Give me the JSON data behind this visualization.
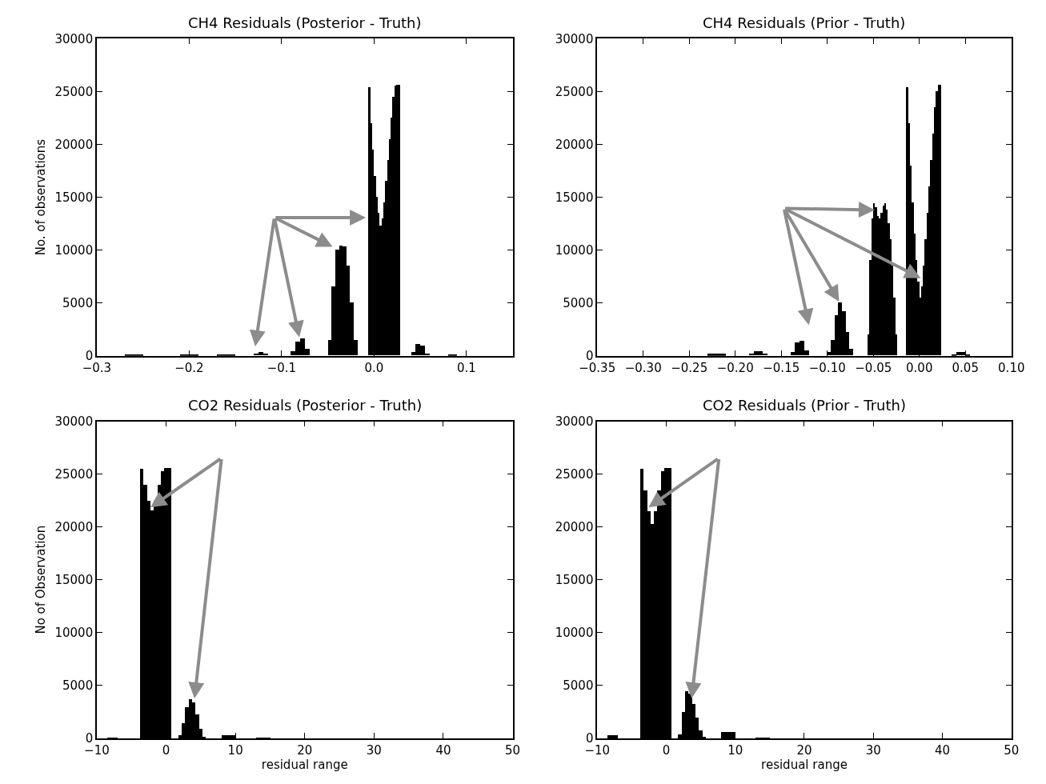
{
  "chart_data": [
    {
      "type": "histogram",
      "title": "CH4 Residuals (Posterior - Truth)",
      "ylabel": "No. of observations",
      "color": "#000000",
      "bins": [
        -0.27,
        -0.25,
        -0.21,
        -0.19,
        -0.17,
        -0.15,
        -0.13,
        -0.125,
        -0.12,
        -0.115,
        -0.09,
        -0.085,
        -0.08,
        -0.075,
        -0.07,
        -0.05,
        -0.046,
        -0.042,
        -0.038,
        -0.034,
        -0.03,
        -0.026,
        -0.022,
        -0.018,
        -0.006,
        -0.004,
        -0.002,
        0,
        0.002,
        0.004,
        0.006,
        0.008,
        0.01,
        0.012,
        0.014,
        0.016,
        0.018,
        0.02,
        0.022,
        0.024,
        0.026,
        0.028,
        0.04,
        0.045,
        0.05,
        0.055,
        0.06,
        0.08,
        0.09
      ],
      "values": [
        100,
        0,
        100,
        0,
        100,
        0,
        200,
        300,
        200,
        0,
        400,
        1300,
        1600,
        600,
        0,
        1500,
        6500,
        10000,
        10400,
        10300,
        8500,
        5000,
        1500,
        0,
        25400,
        22000,
        19500,
        17000,
        15000,
        13500,
        12300,
        13000,
        14500,
        16500,
        18500,
        20500,
        22500,
        24500,
        25500,
        25600,
        25600,
        0,
        300,
        1100,
        900,
        200,
        0,
        100
      ],
      "xlim": [
        -0.3,
        0.15
      ],
      "xticks": [
        {
          "value": -0.3,
          "label": "−0.3"
        },
        {
          "value": -0.2,
          "label": "−0.2"
        },
        {
          "value": -0.1,
          "label": "−0.1"
        },
        {
          "value": 0.0,
          "label": "0.0"
        },
        {
          "value": 0.1,
          "label": "0.1"
        }
      ],
      "ylim": [
        0,
        30000
      ],
      "yticks": [
        0,
        5000,
        10000,
        15000,
        20000,
        25000,
        30000
      ]
    },
    {
      "type": "histogram",
      "title": "CH4 Residuals (Prior - Truth)",
      "color": "#000000",
      "bins": [
        -0.23,
        -0.21,
        -0.185,
        -0.18,
        -0.17,
        -0.165,
        -0.14,
        -0.135,
        -0.13,
        -0.125,
        -0.12,
        -0.1,
        -0.096,
        -0.092,
        -0.088,
        -0.084,
        -0.08,
        -0.076,
        -0.072,
        -0.056,
        -0.054,
        -0.052,
        -0.05,
        -0.048,
        -0.046,
        -0.044,
        -0.042,
        -0.04,
        -0.038,
        -0.036,
        -0.034,
        -0.032,
        -0.03,
        -0.028,
        -0.026,
        -0.024,
        -0.014,
        -0.012,
        -0.01,
        -0.008,
        -0.006,
        -0.004,
        -0.002,
        0,
        0.002,
        0.004,
        0.006,
        0.008,
        0.01,
        0.012,
        0.014,
        0.016,
        0.018,
        0.02,
        0.022,
        0.024,
        0.035,
        0.04,
        0.05,
        0.055
      ],
      "values": [
        150,
        0,
        200,
        400,
        200,
        0,
        300,
        1200,
        1400,
        500,
        0,
        300,
        1500,
        3800,
        5000,
        4200,
        2200,
        600,
        0,
        2000,
        9000,
        13000,
        14400,
        14000,
        13200,
        13000,
        13500,
        14200,
        14400,
        13800,
        12500,
        11000,
        8500,
        5500,
        2000,
        0,
        25400,
        22000,
        18000,
        14500,
        11500,
        9000,
        7000,
        5500,
        6500,
        8500,
        11000,
        13500,
        16000,
        18500,
        21000,
        23500,
        25000,
        25600,
        25600,
        0,
        100,
        300,
        100
      ],
      "xlim": [
        -0.35,
        0.1
      ],
      "xticks": [
        {
          "value": -0.35,
          "label": "−0.35"
        },
        {
          "value": -0.3,
          "label": "−0.30"
        },
        {
          "value": -0.25,
          "label": "−0.25"
        },
        {
          "value": -0.2,
          "label": "−0.20"
        },
        {
          "value": -0.15,
          "label": "−0.15"
        },
        {
          "value": -0.1,
          "label": "−0.10"
        },
        {
          "value": -0.05,
          "label": "−0.05"
        },
        {
          "value": 0.0,
          "label": "0.00"
        },
        {
          "value": 0.05,
          "label": "0.05"
        },
        {
          "value": 0.1,
          "label": "0.10"
        }
      ],
      "ylim": [
        0,
        30000
      ],
      "yticks": [
        0,
        5000,
        10000,
        15000,
        20000,
        25000,
        30000
      ]
    },
    {
      "type": "histogram",
      "title": "CO2 Residuals (Posterior - Truth)",
      "xlabel": "residual range",
      "ylabel": "No of Observation",
      "color": "#000000",
      "bins": [
        -8.5,
        -7,
        -3.75,
        -3.25,
        -2.75,
        -2.25,
        -1.75,
        -1.25,
        -0.75,
        -0.25,
        0.25,
        0.75,
        1.75,
        2.25,
        2.75,
        3.25,
        3.75,
        4.25,
        4.75,
        5.25,
        5.75,
        8,
        10,
        13,
        15
      ],
      "values": [
        100,
        0,
        25500,
        24000,
        22500,
        21600,
        22500,
        24000,
        25300,
        25600,
        25600,
        0,
        300,
        1500,
        3000,
        3700,
        3400,
        2300,
        900,
        200,
        0,
        350,
        0,
        80
      ],
      "xlim": [
        -10,
        50
      ],
      "xticks": [
        {
          "value": -10,
          "label": "−10"
        },
        0,
        10,
        20,
        30,
        40,
        50
      ],
      "ylim": [
        0,
        30000
      ],
      "yticks": [
        0,
        5000,
        10000,
        15000,
        20000,
        25000,
        30000
      ]
    },
    {
      "type": "histogram",
      "title": "CO2 Residuals (Prior - Truth)",
      "xlabel": "residual range",
      "color": "#000000",
      "bins": [
        -8.5,
        -7,
        -3.75,
        -3.25,
        -2.75,
        -2.25,
        -1.75,
        -1.25,
        -0.75,
        -0.25,
        0.25,
        0.75,
        1.75,
        2.25,
        2.75,
        3.25,
        3.75,
        4.25,
        4.75,
        5.25,
        5.75,
        8,
        10,
        13,
        15
      ],
      "values": [
        300,
        0,
        25500,
        23500,
        21500,
        20300,
        21500,
        23500,
        25300,
        25600,
        25600,
        0,
        400,
        2500,
        4500,
        4300,
        3300,
        2000,
        800,
        150,
        0,
        600,
        0,
        100
      ],
      "xlim": [
        -10,
        50
      ],
      "xticks": [
        {
          "value": -10,
          "label": "−10"
        },
        0,
        10,
        20,
        30,
        40,
        50
      ],
      "ylim": [
        0,
        30000
      ],
      "yticks": [
        0,
        5000,
        10000,
        15000,
        20000,
        25000,
        30000
      ]
    }
  ]
}
